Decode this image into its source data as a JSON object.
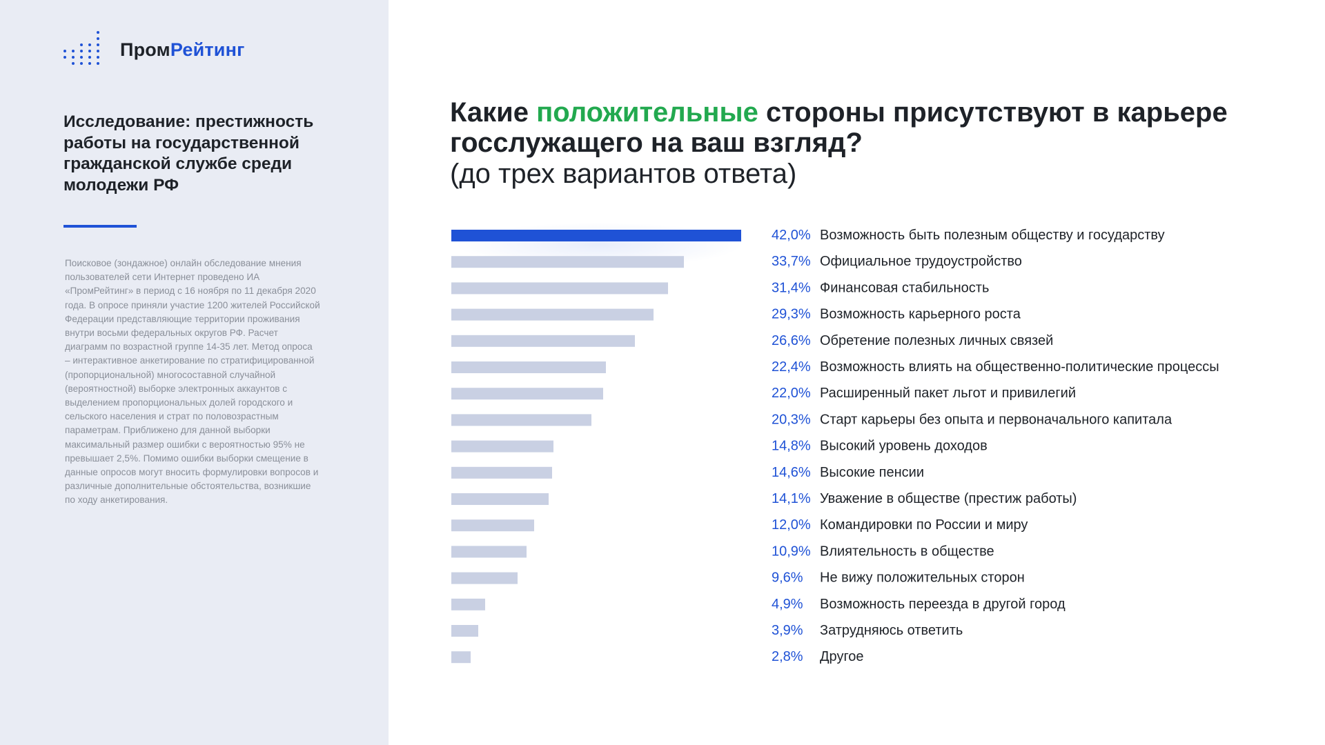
{
  "logo": {
    "part1": "Пром",
    "part2": "Рейтинг"
  },
  "study_title": "Исследование: престижность работы на государственной гражданской службе среди молодежи РФ",
  "methodology": "Поисковое (зондажное) онлайн обследование мнения пользователей сети Интернет проведено ИА «ПромРейтинг» в период с 16 ноября по 11 декабря 2020 года. В опросе приняли участие 1200 жителей Российской Федерации представляющие территории проживания внутри восьми федеральных округов РФ. Расчет диаграмм по возрастной группе 14-35 лет. Метод опроса – интерактивное анкетирование по стратифицированной (пропорциональной) многосоставной случайной (вероятностной) выборке электронных аккаунтов с выделением пропорциональных долей городского и сельского населения и страт по половозрастным параметрам. Приближено для данной выборки максимальный размер ошибки с вероятностью 95% не превышает 2,5%. Помимо ошибки выборки смещение в данные опросов могут вносить формулировки вопросов и различные дополнительные обстоятельства, возникшие по ходу анкетирования.",
  "question": {
    "part1": "Какие ",
    "highlight": "положительные",
    "part2": " стороны присутствуют в карьере госслужащего на ваш взгляд?",
    "sub": "(до трех вариантов ответа)"
  },
  "colors": {
    "accent": "#1f52d6",
    "highlight": "#22a94f",
    "bar_default": "#c9d0e3",
    "bar_top": "#1f52d6",
    "label_value": "#1f52d6",
    "sidebar_bg": "#e9ecf4"
  },
  "chart_data": {
    "type": "bar",
    "orientation": "horizontal",
    "xlim": [
      0,
      42
    ],
    "categories": [
      "Возможность быть полезным обществу и государству",
      "Официальное трудоустройство",
      "Финансовая стабильность",
      "Возможность карьерного роста",
      "Обретение полезных личных связей",
      "Возможность влиять на общественно-политические процессы",
      "Расширенный пакет льгот и привилегий",
      "Старт карьеры без опыта и первоначального капитала",
      "Высокий уровень доходов",
      "Высокие пенсии",
      "Уважение в обществе (престиж работы)",
      "Командировки по России и миру",
      "Влиятельность в обществе",
      "Не вижу положительных сторон",
      "Возможность переезда в другой город",
      "Затрудняюсь ответить",
      "Другое"
    ],
    "values": [
      42.0,
      33.7,
      31.4,
      29.3,
      26.6,
      22.4,
      22.0,
      20.3,
      14.8,
      14.6,
      14.1,
      12.0,
      10.9,
      9.6,
      4.9,
      3.9,
      2.8
    ],
    "value_labels": [
      "42,0%",
      "33,7%",
      "31,4%",
      "29,3%",
      "26,6%",
      "22,4%",
      "22,0%",
      "20,3%",
      "14,8%",
      "14,6%",
      "14,1%",
      "12,0%",
      "10,9%",
      "9,6%",
      "4,9%",
      "3,9%",
      "2,8%"
    ]
  }
}
